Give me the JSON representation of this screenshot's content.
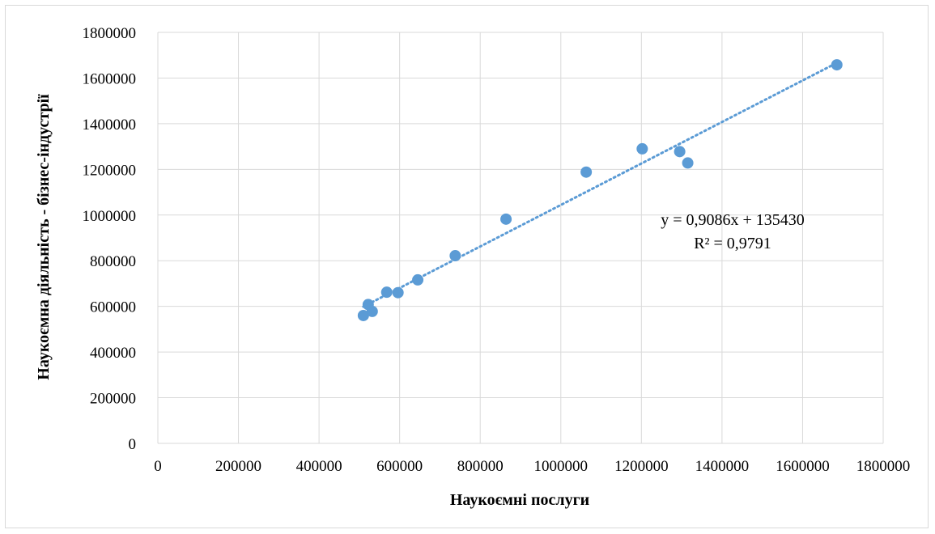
{
  "chart_data": {
    "type": "scatter",
    "xlabel": "Наукоємні послуги",
    "ylabel": "Наукоємна діяльність - бізнес-індустрії",
    "xlim": [
      0,
      1800000
    ],
    "ylim": [
      0,
      1800000
    ],
    "x_ticks": [
      "0",
      "200000",
      "400000",
      "600000",
      "800000",
      "1000000",
      "1200000",
      "1400000",
      "1600000",
      "1800000"
    ],
    "y_ticks": [
      "0",
      "200000",
      "400000",
      "600000",
      "800000",
      "1000000",
      "1200000",
      "1400000",
      "1600000",
      "1800000"
    ],
    "grid": true,
    "marker_color": "#5b9bd5",
    "trendline_color": "#5b9bd5",
    "points": [
      {
        "x": 510000,
        "y": 560000
      },
      {
        "x": 522000,
        "y": 608000
      },
      {
        "x": 532000,
        "y": 578000
      },
      {
        "x": 568000,
        "y": 662000
      },
      {
        "x": 596000,
        "y": 660000
      },
      {
        "x": 645000,
        "y": 716000
      },
      {
        "x": 738000,
        "y": 822000
      },
      {
        "x": 864000,
        "y": 982000
      },
      {
        "x": 1063000,
        "y": 1188000
      },
      {
        "x": 1202000,
        "y": 1290000
      },
      {
        "x": 1295000,
        "y": 1278000
      },
      {
        "x": 1315000,
        "y": 1228000
      },
      {
        "x": 1685000,
        "y": 1658000
      }
    ],
    "trendline": {
      "type": "linear",
      "slope": 0.9086,
      "intercept": 135430,
      "x_range": [
        510000,
        1685000
      ],
      "equation_label": "y = 0,9086x + 135430",
      "r2_label": "R² = 0,9791"
    }
  }
}
